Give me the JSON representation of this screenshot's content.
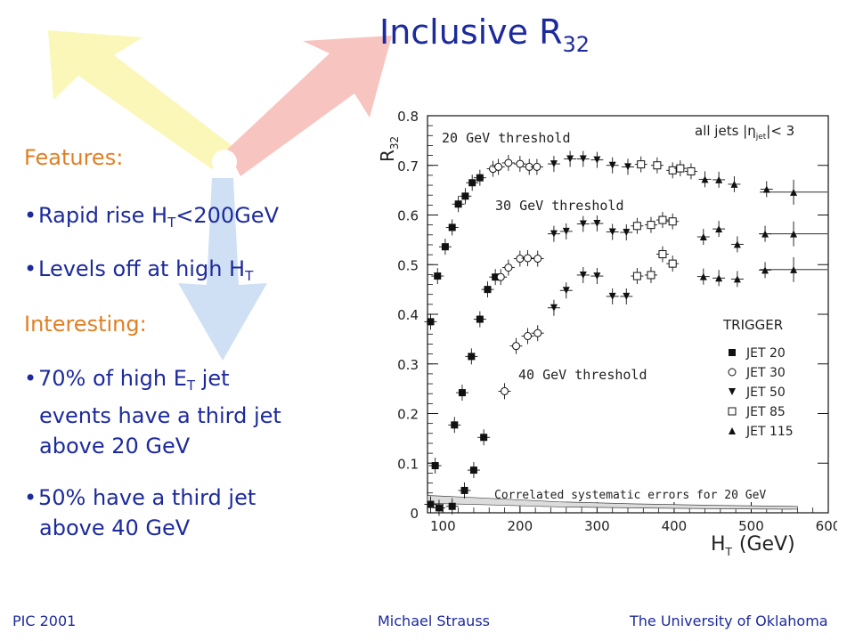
{
  "title": {
    "main": "Inclusive R",
    "sub": "32"
  },
  "features": {
    "heading": "Features:",
    "items": [
      {
        "text": "Rapid rise H",
        "sub": "T",
        "tail": "<200GeV"
      },
      {
        "text": "Levels off at high H",
        "sub": "T",
        "tail": ""
      }
    ]
  },
  "interesting": {
    "heading": "Interesting:",
    "item1": {
      "a": "70% of high E",
      "sub": "T",
      "b": " jet",
      "line2": "events have a third jet",
      "line3": "above 20 GeV"
    },
    "item2": {
      "line1": "50% have a third jet",
      "line2": "above 40 GeV"
    }
  },
  "footer": {
    "left": "PIC 2001",
    "center": "Michael Strauss",
    "right": "The University of Oklahoma"
  },
  "colors": {
    "text_blue": "#1d2a9c",
    "heading_orange": "#e07f24",
    "arrow_yellow": "#fbf7b8",
    "arrow_red": "#f7c4c0",
    "arrow_blue": "#cfe0f4"
  },
  "chart_data": {
    "type": "scatter",
    "xlabel": "H",
    "xlabel_sub": "T",
    "xlabel_unit": "(GeV)",
    "ylabel": "R",
    "ylabel_sub": "32",
    "xlim": [
      80,
      600
    ],
    "ylim": [
      0,
      0.8
    ],
    "xticks": [
      "100",
      "200",
      "300",
      "400",
      "500",
      "600"
    ],
    "yticks": [
      "0",
      "0.1",
      "0.2",
      "0.3",
      "0.4",
      "0.5",
      "0.6",
      "0.7",
      "0.8"
    ],
    "annotations": {
      "selection": "all jets |η",
      "selection_sub": "jet",
      "selection_tail": "|< 3",
      "th20": "20 GeV threshold",
      "th30": "30 GeV threshold",
      "th40": "40 GeV threshold",
      "systematics": "Correlated systematic errors for 20 GeV"
    },
    "legend": {
      "title": "TRIGGER",
      "placement": "right",
      "entries": [
        {
          "label": "JET 20",
          "marker": "filled-square"
        },
        {
          "label": "JET 30",
          "marker": "open-circle"
        },
        {
          "label": "JET 50",
          "marker": "filled-triangle-down"
        },
        {
          "label": "JET 85",
          "marker": "open-square"
        },
        {
          "label": "JET 115",
          "marker": "filled-triangle-up"
        }
      ]
    },
    "series": [
      {
        "threshold": "20 GeV",
        "trigger": "JET 20",
        "marker": "filled-square",
        "points": [
          [
            84,
            0.385
          ],
          [
            93,
            0.477
          ],
          [
            103,
            0.536
          ],
          [
            112,
            0.575
          ],
          [
            120,
            0.622
          ],
          [
            129,
            0.638
          ],
          [
            138,
            0.665
          ],
          [
            148,
            0.675
          ]
        ]
      },
      {
        "threshold": "20 GeV",
        "trigger": "JET 30",
        "marker": "open-circle",
        "points": [
          [
            165,
            0.693
          ],
          [
            172,
            0.697
          ],
          [
            185,
            0.705
          ],
          [
            200,
            0.703
          ],
          [
            212,
            0.697
          ],
          [
            222,
            0.697
          ]
        ]
      },
      {
        "threshold": "20 GeV",
        "trigger": "JET 50",
        "marker": "filled-triangle-down",
        "points": [
          [
            244,
            0.703
          ],
          [
            265,
            0.713
          ],
          [
            282,
            0.713
          ],
          [
            300,
            0.711
          ],
          [
            320,
            0.7
          ],
          [
            340,
            0.697
          ]
        ]
      },
      {
        "threshold": "20 GeV",
        "trigger": "JET 85",
        "marker": "open-square",
        "points": [
          [
            357,
            0.702
          ],
          [
            378,
            0.7
          ],
          [
            398,
            0.69
          ],
          [
            408,
            0.694
          ],
          [
            422,
            0.688
          ]
        ]
      },
      {
        "threshold": "20 GeV",
        "trigger": "JET 115",
        "marker": "filled-triangle-up",
        "points": [
          [
            440,
            0.672
          ],
          [
            458,
            0.671
          ],
          [
            478,
            0.662
          ],
          [
            520,
            0.652
          ],
          [
            555,
            0.646
          ]
        ]
      },
      {
        "threshold": "30 GeV",
        "trigger": "JET 20",
        "marker": "filled-square",
        "points": [
          [
            84,
            0.017
          ],
          [
            90,
            0.095
          ],
          [
            115,
            0.177
          ],
          [
            125,
            0.242
          ],
          [
            137,
            0.315
          ],
          [
            148,
            0.39
          ],
          [
            158,
            0.45
          ],
          [
            168,
            0.475
          ]
        ]
      },
      {
        "threshold": "30 GeV",
        "trigger": "JET 30",
        "marker": "open-circle",
        "points": [
          [
            175,
            0.475
          ],
          [
            185,
            0.494
          ],
          [
            200,
            0.512
          ],
          [
            210,
            0.513
          ],
          [
            223,
            0.512
          ]
        ]
      },
      {
        "threshold": "30 GeV",
        "trigger": "JET 50",
        "marker": "filled-triangle-down",
        "points": [
          [
            244,
            0.562
          ],
          [
            260,
            0.567
          ],
          [
            282,
            0.582
          ],
          [
            300,
            0.583
          ],
          [
            320,
            0.566
          ],
          [
            338,
            0.565
          ]
        ]
      },
      {
        "threshold": "30 GeV",
        "trigger": "JET 85",
        "marker": "open-square",
        "points": [
          [
            352,
            0.578
          ],
          [
            370,
            0.58
          ],
          [
            385,
            0.59
          ],
          [
            398,
            0.587
          ]
        ]
      },
      {
        "threshold": "30 GeV",
        "trigger": "JET 115",
        "marker": "filled-triangle-up",
        "points": [
          [
            438,
            0.556
          ],
          [
            458,
            0.572
          ],
          [
            482,
            0.541
          ],
          [
            518,
            0.562
          ],
          [
            555,
            0.562
          ]
        ]
      },
      {
        "threshold": "40 GeV",
        "trigger": "JET 20",
        "marker": "filled-square",
        "points": [
          [
            95,
            0.01
          ],
          [
            112,
            0.013
          ],
          [
            128,
            0.045
          ],
          [
            140,
            0.086
          ],
          [
            153,
            0.152
          ]
        ]
      },
      {
        "threshold": "40 GeV",
        "trigger": "JET 30",
        "marker": "open-circle",
        "points": [
          [
            180,
            0.245
          ],
          [
            195,
            0.336
          ],
          [
            210,
            0.356
          ],
          [
            223,
            0.362
          ]
        ]
      },
      {
        "threshold": "40 GeV",
        "trigger": "JET 50",
        "marker": "filled-triangle-down",
        "points": [
          [
            244,
            0.413
          ],
          [
            260,
            0.448
          ],
          [
            282,
            0.479
          ],
          [
            300,
            0.477
          ],
          [
            320,
            0.436
          ],
          [
            338,
            0.436
          ]
        ]
      },
      {
        "threshold": "40 GeV",
        "trigger": "JET 85",
        "marker": "open-square",
        "points": [
          [
            352,
            0.477
          ],
          [
            370,
            0.479
          ],
          [
            385,
            0.521
          ],
          [
            398,
            0.502
          ]
        ]
      },
      {
        "threshold": "40 GeV",
        "trigger": "JET 115",
        "marker": "filled-triangle-up",
        "points": [
          [
            438,
            0.476
          ],
          [
            458,
            0.473
          ],
          [
            482,
            0.471
          ],
          [
            518,
            0.489
          ],
          [
            555,
            0.49
          ]
        ]
      }
    ],
    "systematics_band": [
      [
        80,
        0.035
      ],
      [
        150,
        0.03
      ],
      [
        250,
        0.022
      ],
      [
        350,
        0.018
      ],
      [
        450,
        0.015
      ],
      [
        560,
        0.013
      ]
    ]
  }
}
